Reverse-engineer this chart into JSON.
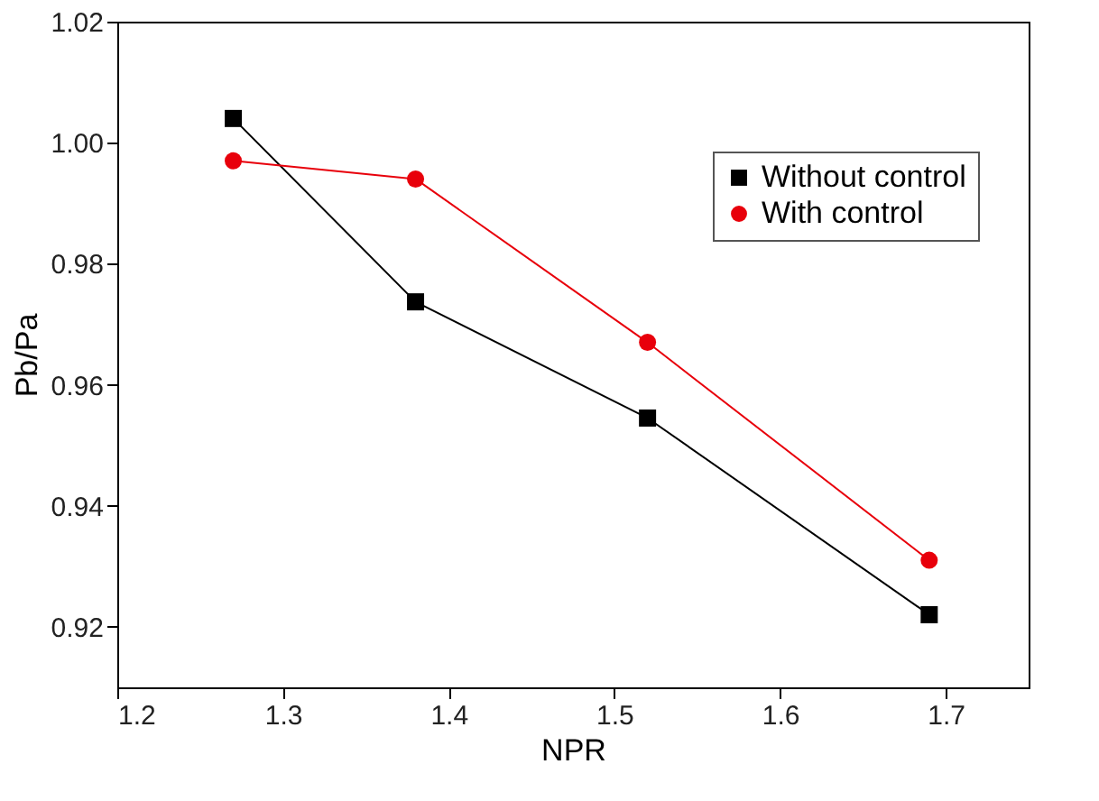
{
  "chart_data": {
    "type": "line",
    "xlabel": "NPR",
    "ylabel": "Pb/Pa",
    "x": [
      1.27,
      1.38,
      1.52,
      1.69
    ],
    "series": [
      {
        "name": "Without control",
        "color": "#000000",
        "marker": "square",
        "values": [
          1.004,
          0.9737,
          0.9545,
          0.922
        ]
      },
      {
        "name": "With control",
        "color": "#e8000b",
        "marker": "circle",
        "values": [
          0.997,
          0.994,
          0.967,
          0.931
        ]
      }
    ],
    "xlim": [
      1.2,
      1.75
    ],
    "xticks": [
      1.2,
      1.3,
      1.4,
      1.5,
      1.6,
      1.7
    ],
    "ylim": [
      0.91,
      1.02
    ],
    "yticks": [
      0.92,
      0.94,
      0.96,
      0.98,
      {
        "value": 1.0,
        "label": "1.00"
      },
      1.02
    ],
    "grid": false,
    "legend": "top right",
    "line_style": "solid"
  }
}
